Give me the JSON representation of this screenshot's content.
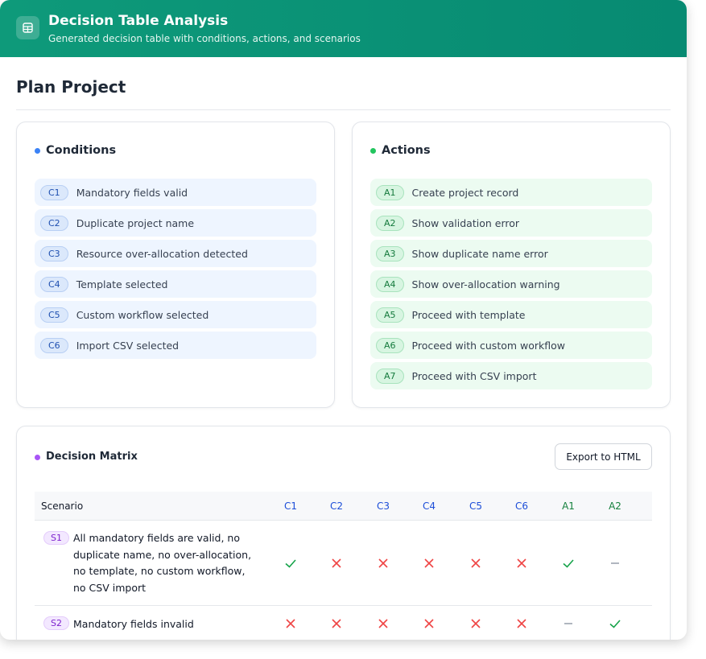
{
  "header": {
    "title": "Decision Table Analysis",
    "subtitle": "Generated decision table with conditions, actions, and scenarios"
  },
  "page_title": "Plan Project",
  "conditions": {
    "title": "Conditions",
    "items": [
      {
        "id": "C1",
        "label": "Mandatory fields valid"
      },
      {
        "id": "C2",
        "label": "Duplicate project name"
      },
      {
        "id": "C3",
        "label": "Resource over-allocation detected"
      },
      {
        "id": "C4",
        "label": "Template selected"
      },
      {
        "id": "C5",
        "label": "Custom workflow selected"
      },
      {
        "id": "C6",
        "label": "Import CSV selected"
      }
    ]
  },
  "actions": {
    "title": "Actions",
    "items": [
      {
        "id": "A1",
        "label": "Create project record"
      },
      {
        "id": "A2",
        "label": "Show validation error"
      },
      {
        "id": "A3",
        "label": "Show duplicate name error"
      },
      {
        "id": "A4",
        "label": "Show over-allocation warning"
      },
      {
        "id": "A5",
        "label": "Proceed with template"
      },
      {
        "id": "A6",
        "label": "Proceed with custom workflow"
      },
      {
        "id": "A7",
        "label": "Proceed with CSV import"
      }
    ]
  },
  "matrix": {
    "title": "Decision Matrix",
    "export_button": "Export to HTML",
    "columns": [
      "Scenario",
      "C1",
      "C2",
      "C3",
      "C4",
      "C5",
      "C6",
      "A1",
      "A2"
    ],
    "rows": [
      {
        "id": "S1",
        "description": "All mandatory fields are valid, no duplicate name, no over-allocation, no template, no custom workflow, no CSV import",
        "cells": [
          true,
          false,
          false,
          false,
          false,
          false,
          true,
          null
        ]
      },
      {
        "id": "S2",
        "description": "Mandatory fields invalid",
        "cells": [
          false,
          false,
          false,
          false,
          false,
          false,
          null,
          true
        ]
      }
    ]
  }
}
